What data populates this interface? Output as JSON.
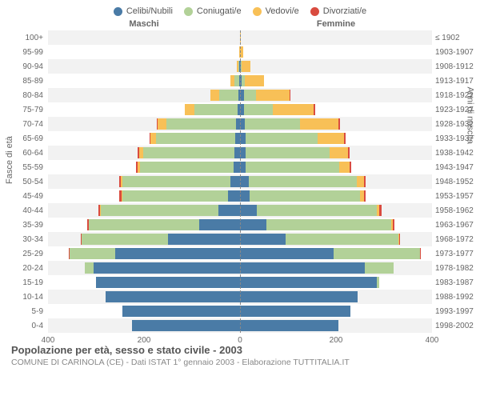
{
  "chart": {
    "type": "population-pyramid",
    "title": "Popolazione per età, sesso e stato civile - 2003",
    "subtitle": "COMUNE DI CARINOLA (CE) - Dati ISTAT 1° gennaio 2003 - Elaborazione TUTTITALIA.IT",
    "left_header": "Maschi",
    "right_header": "Femmine",
    "y_left_title": "Fasce di età",
    "y_right_title": "Anni di nascita",
    "x_max": 400,
    "x_ticks": [
      400,
      200,
      0,
      200,
      400
    ],
    "colors": {
      "celibi": "#4a7ba6",
      "coniugati": "#b2d198",
      "vedovi": "#f8c057",
      "divorziati": "#d94b3f",
      "bg": "#ffffff",
      "row_alt": "#f2f2f2",
      "grid": "#888888",
      "text": "#666666"
    },
    "legend": [
      {
        "label": "Celibi/Nubili",
        "color": "#4a7ba6"
      },
      {
        "label": "Coniugati/e",
        "color": "#b2d198"
      },
      {
        "label": "Vedovi/e",
        "color": "#f8c057"
      },
      {
        "label": "Divorziati/e",
        "color": "#d94b3f"
      }
    ],
    "rows": [
      {
        "age": "100+",
        "year": "≤ 1902",
        "m": {
          "c": 0,
          "co": 0,
          "v": 0,
          "d": 0
        },
        "f": {
          "c": 0,
          "co": 0,
          "v": 2,
          "d": 0
        }
      },
      {
        "age": "95-99",
        "year": "1903-1907",
        "m": {
          "c": 0,
          "co": 0,
          "v": 2,
          "d": 0
        },
        "f": {
          "c": 0,
          "co": 0,
          "v": 6,
          "d": 0
        }
      },
      {
        "age": "90-94",
        "year": "1908-1912",
        "m": {
          "c": 1,
          "co": 3,
          "v": 3,
          "d": 0
        },
        "f": {
          "c": 2,
          "co": 2,
          "v": 18,
          "d": 0
        }
      },
      {
        "age": "85-89",
        "year": "1913-1917",
        "m": {
          "c": 2,
          "co": 10,
          "v": 8,
          "d": 0
        },
        "f": {
          "c": 4,
          "co": 6,
          "v": 40,
          "d": 0
        }
      },
      {
        "age": "80-84",
        "year": "1918-1922",
        "m": {
          "c": 4,
          "co": 40,
          "v": 18,
          "d": 0
        },
        "f": {
          "c": 8,
          "co": 25,
          "v": 70,
          "d": 2
        }
      },
      {
        "age": "75-79",
        "year": "1923-1927",
        "m": {
          "c": 5,
          "co": 90,
          "v": 20,
          "d": 0
        },
        "f": {
          "c": 8,
          "co": 60,
          "v": 85,
          "d": 3
        }
      },
      {
        "age": "70-74",
        "year": "1928-1932",
        "m": {
          "c": 9,
          "co": 145,
          "v": 18,
          "d": 2
        },
        "f": {
          "c": 10,
          "co": 115,
          "v": 80,
          "d": 3
        }
      },
      {
        "age": "65-69",
        "year": "1933-1937",
        "m": {
          "c": 10,
          "co": 165,
          "v": 12,
          "d": 2
        },
        "f": {
          "c": 12,
          "co": 150,
          "v": 55,
          "d": 3
        }
      },
      {
        "age": "60-64",
        "year": "1938-1942",
        "m": {
          "c": 12,
          "co": 190,
          "v": 8,
          "d": 3
        },
        "f": {
          "c": 12,
          "co": 175,
          "v": 38,
          "d": 3
        }
      },
      {
        "age": "55-59",
        "year": "1943-1947",
        "m": {
          "c": 14,
          "co": 195,
          "v": 4,
          "d": 3
        },
        "f": {
          "c": 12,
          "co": 195,
          "v": 22,
          "d": 3
        }
      },
      {
        "age": "50-54",
        "year": "1948-1952",
        "m": {
          "c": 20,
          "co": 225,
          "v": 3,
          "d": 4
        },
        "f": {
          "c": 18,
          "co": 225,
          "v": 15,
          "d": 4
        }
      },
      {
        "age": "45-49",
        "year": "1953-1957",
        "m": {
          "c": 25,
          "co": 220,
          "v": 2,
          "d": 4
        },
        "f": {
          "c": 20,
          "co": 230,
          "v": 8,
          "d": 4
        }
      },
      {
        "age": "40-44",
        "year": "1958-1962",
        "m": {
          "c": 45,
          "co": 245,
          "v": 1,
          "d": 4
        },
        "f": {
          "c": 35,
          "co": 250,
          "v": 5,
          "d": 5
        }
      },
      {
        "age": "35-39",
        "year": "1963-1967",
        "m": {
          "c": 85,
          "co": 230,
          "v": 0,
          "d": 3
        },
        "f": {
          "c": 55,
          "co": 260,
          "v": 3,
          "d": 4
        }
      },
      {
        "age": "30-34",
        "year": "1968-1972",
        "m": {
          "c": 150,
          "co": 180,
          "v": 0,
          "d": 2
        },
        "f": {
          "c": 95,
          "co": 235,
          "v": 1,
          "d": 3
        }
      },
      {
        "age": "25-29",
        "year": "1973-1977",
        "m": {
          "c": 260,
          "co": 95,
          "v": 0,
          "d": 1
        },
        "f": {
          "c": 195,
          "co": 180,
          "v": 0,
          "d": 2
        }
      },
      {
        "age": "20-24",
        "year": "1978-1982",
        "m": {
          "c": 305,
          "co": 18,
          "v": 0,
          "d": 0
        },
        "f": {
          "c": 260,
          "co": 60,
          "v": 0,
          "d": 0
        }
      },
      {
        "age": "15-19",
        "year": "1983-1987",
        "m": {
          "c": 300,
          "co": 0,
          "v": 0,
          "d": 0
        },
        "f": {
          "c": 285,
          "co": 5,
          "v": 0,
          "d": 0
        }
      },
      {
        "age": "10-14",
        "year": "1988-1992",
        "m": {
          "c": 280,
          "co": 0,
          "v": 0,
          "d": 0
        },
        "f": {
          "c": 245,
          "co": 0,
          "v": 0,
          "d": 0
        }
      },
      {
        "age": "5-9",
        "year": "1993-1997",
        "m": {
          "c": 245,
          "co": 0,
          "v": 0,
          "d": 0
        },
        "f": {
          "c": 230,
          "co": 0,
          "v": 0,
          "d": 0
        }
      },
      {
        "age": "0-4",
        "year": "1998-2002",
        "m": {
          "c": 225,
          "co": 0,
          "v": 0,
          "d": 0
        },
        "f": {
          "c": 205,
          "co": 0,
          "v": 0,
          "d": 0
        }
      }
    ]
  }
}
